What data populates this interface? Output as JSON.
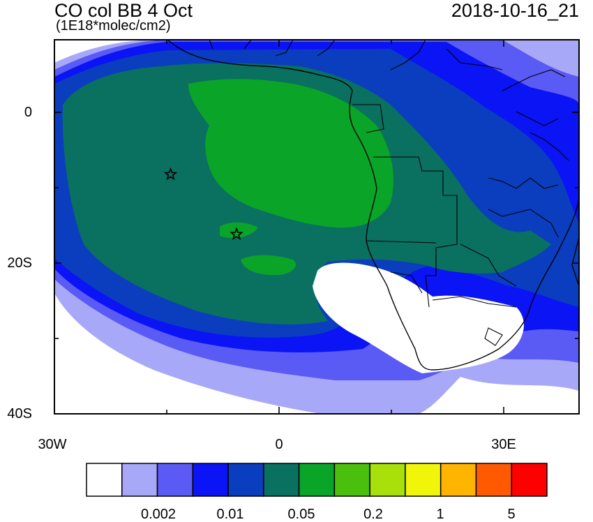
{
  "header": {
    "title": "CO col BB 4 Oct",
    "units": "(1E18*molec/cm2)",
    "datetime": "2018-10-16_21"
  },
  "axes": {
    "y_ticks": [
      {
        "value": 0,
        "label": "0"
      },
      {
        "value": -20,
        "label": "20S"
      },
      {
        "value": -40,
        "label": "40S"
      }
    ],
    "x_ticks": [
      {
        "value": -30,
        "label": "30W"
      },
      {
        "value": 0,
        "label": "0"
      },
      {
        "value": 30,
        "label": "30E"
      }
    ],
    "lon_range": [
      -30,
      40
    ],
    "lat_range": [
      -40,
      10
    ]
  },
  "colorbar": {
    "colors": [
      "#ffffff",
      "#a8a8f8",
      "#5a5af5",
      "#0a14f5",
      "#0a3ebe",
      "#0a7060",
      "#0aa528",
      "#4ac00c",
      "#a8e00a",
      "#f0f50a",
      "#ffb400",
      "#ff5a00",
      "#ff0000"
    ],
    "labels": [
      "0.002",
      "0.01",
      "0.05",
      "0.2",
      "1",
      "5"
    ]
  },
  "markers": [
    {
      "name": "star-1",
      "lon": -14.5,
      "lat": -8
    },
    {
      "name": "star-2",
      "lon": -5.7,
      "lat": -16
    }
  ]
}
